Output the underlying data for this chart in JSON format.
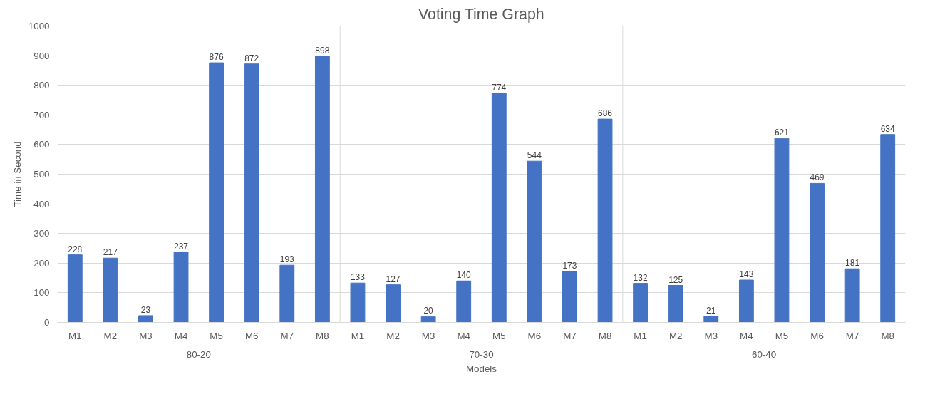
{
  "chart_data": {
    "type": "bar",
    "title": "Voting Time Graph",
    "xlabel": "Models",
    "ylabel": "Time in Second",
    "categories": [
      "M1",
      "M2",
      "M3",
      "M4",
      "M5",
      "M6",
      "M7",
      "M8",
      "M1",
      "M2",
      "M3",
      "M4",
      "M5",
      "M6",
      "M7",
      "M8",
      "M1",
      "M2",
      "M3",
      "M4",
      "M5",
      "M6",
      "M7",
      "M8"
    ],
    "values": [
      228,
      217,
      23,
      237,
      876,
      872,
      193,
      898,
      133,
      127,
      20,
      140,
      774,
      544,
      173,
      686,
      132,
      125,
      21,
      143,
      621,
      469,
      181,
      634
    ],
    "color": "#4472c4",
    "annotations": [
      "80-20",
      "70-30",
      "60-40"
    ],
    "ylim": [
      0,
      1000
    ],
    "yticks": [
      0,
      100,
      200,
      300,
      400,
      500,
      600,
      700,
      800,
      900,
      1000
    ],
    "grid": "y",
    "data_labels": true
  }
}
